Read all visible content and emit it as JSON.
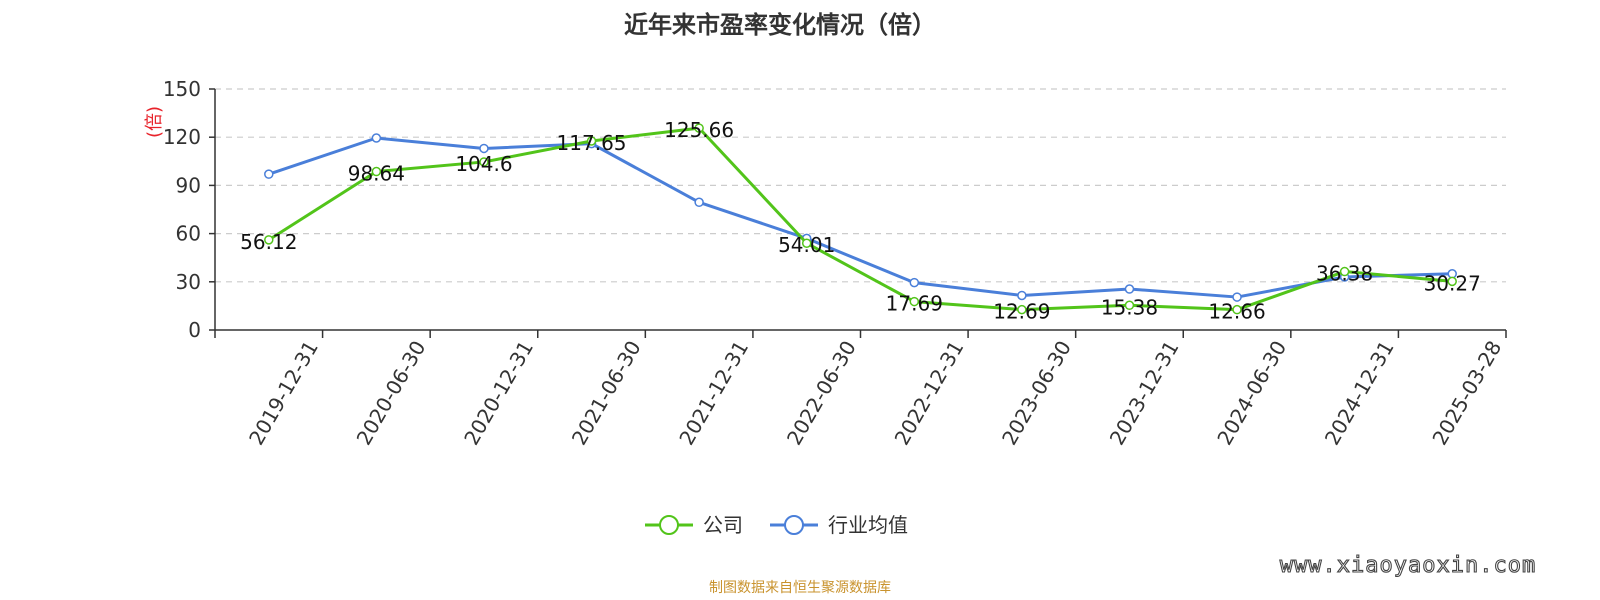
{
  "chart_data": {
    "type": "line",
    "title": "近年来市盈率变化情况（倍）",
    "ylabel": "(倍)",
    "xlabel": "",
    "ylim": [
      0,
      150
    ],
    "yticks": [
      0,
      30,
      60,
      90,
      120,
      150
    ],
    "categories": [
      "2019-12-31",
      "2020-06-30",
      "2020-12-31",
      "2021-06-30",
      "2021-12-31",
      "2022-06-30",
      "2022-12-31",
      "2023-06-30",
      "2023-12-31",
      "2024-06-30",
      "2024-12-31",
      "2025-03-28"
    ],
    "series": [
      {
        "name": "公司",
        "color": "#52c41a",
        "values": [
          56.12,
          98.64,
          104.6,
          117.65,
          125.66,
          54.01,
          17.69,
          12.69,
          15.38,
          12.66,
          36.38,
          30.27
        ],
        "labels": [
          "56.12",
          "98.64",
          "104.6",
          "117.65",
          "125.66",
          "54.01",
          "17.69",
          "12.69",
          "15.38",
          "12.66",
          "36.38",
          "30.27"
        ]
      },
      {
        "name": "行业均值",
        "color": "#4a7fd9",
        "values": [
          97,
          119.5,
          113,
          116,
          79.5,
          57,
          29.5,
          21.5,
          25.5,
          20.5,
          33,
          35
        ]
      }
    ],
    "grid": true,
    "legend_position": "bottom-center"
  },
  "source": "制图数据来自恒生聚源数据库",
  "watermark": "www.xiaoyaoxin.com"
}
